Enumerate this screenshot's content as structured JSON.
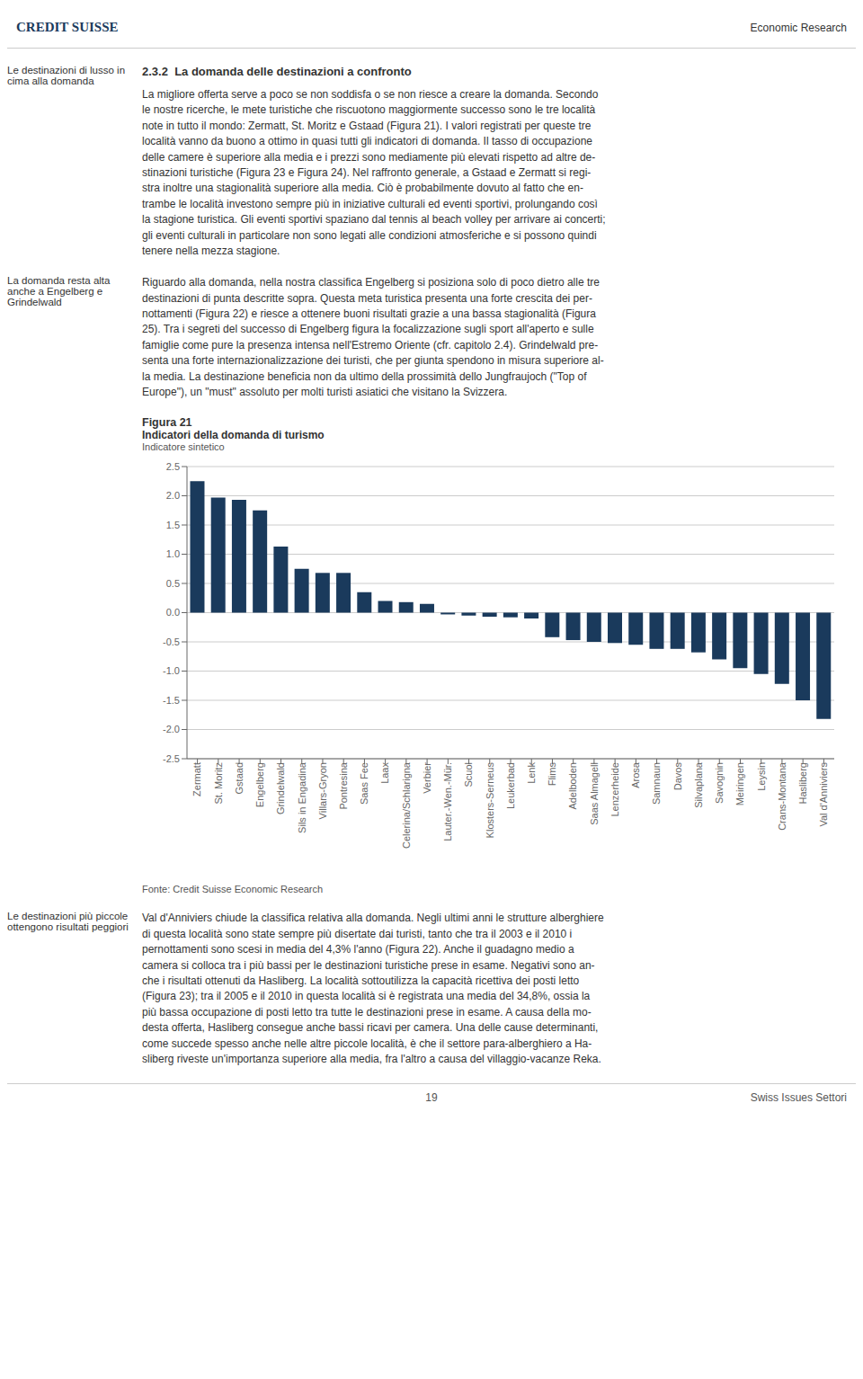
{
  "chart_data": {
    "type": "bar",
    "title": "Figura 21",
    "subtitle": "Indicatori della domanda di turismo",
    "ylabel": "Indicatore sintetico",
    "color": "#1a3a5c",
    "categories": [
      "Zermatt",
      "St. Moritz",
      "Gstaad",
      "Engelberg",
      "Grindelwald",
      "Sils in Engadina",
      "Villars-Gryon",
      "Pontresina",
      "Saas Fee",
      "Laax",
      "Celerina/Schlarigna",
      "Verbier",
      "Lauter.-Wen.-Mür.",
      "Scuol",
      "Klosters-Serneus",
      "Leukerbad",
      "Lenk",
      "Flims",
      "Adelboden",
      "Saas Almagell",
      "Lenzerheide",
      "Arosa",
      "Samnaun",
      "Davos",
      "Silvaplana",
      "Savognin",
      "Meiringen",
      "Leysin",
      "Crans-Montana",
      "Hasliberg",
      "Val d'Anniviers"
    ],
    "values": [
      2.25,
      1.97,
      1.93,
      1.75,
      1.13,
      0.75,
      0.68,
      0.68,
      0.35,
      0.2,
      0.18,
      0.15,
      -0.03,
      -0.05,
      -0.07,
      -0.08,
      -0.1,
      -0.42,
      -0.47,
      -0.5,
      -0.52,
      -0.55,
      -0.62,
      -0.62,
      -0.68,
      -0.8,
      -0.95,
      -1.05,
      -1.22,
      -1.5,
      -1.82
    ],
    "ylim": [
      -2.5,
      2.5
    ],
    "yticks": [
      -2.5,
      {
        "value": -2.0,
        "label": "-2.0"
      },
      -1.5,
      {
        "value": -1.0,
        "label": "-1.0"
      },
      -0.5,
      {
        "value": 0.0,
        "label": "0.0"
      },
      0.5,
      {
        "value": 1.0,
        "label": "1.0"
      },
      1.5,
      {
        "value": 2.0,
        "label": "2.0"
      },
      2.5
    ],
    "grid": true,
    "annotations": [
      "CREDIT SUISSE",
      "Economic Research",
      "Le destinazioni di lusso in\ncima alla domanda",
      "La domanda resta alta\nanche a Engelberg e\nGrindelwald",
      "2.3.2  La domanda delle destinazioni a confronto",
      "La migliore offerta serve a poco se non soddisfa o se non riesce a creare la domanda. Secondo\nle nostre ricerche, le mete turistiche che riscuotono maggiormente successo sono le tre località\nnote in tutto il mondo: Zermatt, St. Moritz e Gstaad (Figura 21). I valori registrati per queste tre\nlocalità vanno da buono a ottimo in quasi tutti gli indicatori di domanda. Il tasso di occupazione\ndelle camere è superiore alla media e i prezzi sono mediamente più elevati rispetto ad altre de-\nstinazioni turistiche (Figura 23 e Figura 24). Nel raffronto generale, a Gstaad e Zermatt si regi-\nstra inoltre una stagionalità superiore alla media. Ciò è probabilmente dovuto al fatto che en-\ntrambe le località investono sempre più in iniziative culturali ed eventi sportivi, prolungando così\nla stagione turistica. Gli eventi sportivi spaziano dal tennis al beach volley per arrivare ai concerti;\ngli eventi culturali in particolare non sono legati alle condizioni atmosferiche e si possono quindi\ntenere nella mezza stagione.",
      "Riguardo alla domanda, nella nostra classifica Engelberg si posiziona solo di poco dietro alle tre\ndestinazioni di punta descritte sopra. Questa meta turistica presenta una forte crescita dei per-\nnottamenti (Figura 22) e riesce a ottenere buoni risultati grazie a una bassa stagionalità (Figura\n25). Tra i segreti del successo di Engelberg figura la focalizzazione sugli sport all'aperto e sulle\nfamiglie come pure la presenza intensa nell'Estremo Oriente (cfr. capitolo 2.4). Grindelwald pre-\nsenta una forte internazionalizzazione dei turisti, che per giunta spendono in misura superiore al-\nla media. La destinazione beneficia non da ultimo della prossimità dello Jungfraujoch (\"Top of\nEurope\"), un \"must\" assoluto per molti turisti asiatici che visitano la Svizzera.",
      "Fonte: Credit Suisse Economic Research",
      "Le destinazioni più piccole\nottengono risultati peggiori",
      "Val d'Anniviers chiude la classifica relativa alla domanda. Negli ultimi anni le strutture alberghiere\ndi questa località sono state sempre più disertate dai turisti, tanto che tra il 2003 e il 2010 i\npernottamenti sono scesi in media del 4,3% l'anno (Figura 22). Anche il guadagno medio a\ncamera si colloca tra i più bassi per le destinazioni turistiche prese in esame. Negativi sono an-\nche i risultati ottenuti da Hasliberg. La località sottoutilizza la capacità ricettiva dei posti letto\n(Figura 23); tra il 2005 e il 2010 in questa località si è registrata una media del 34,8%, ossia la\npiù bassa occupazione di posti letto tra tutte le destinazioni prese in esame. A causa della mo-\ndesta offerta, Hasliberg consegue anche bassi ricavi per camera. Una delle cause determinanti,\ncome succede spesso anche nelle altre piccole località, è che il settore para-alberghiero a Ha-\nsliberg riveste un'importanza superiore alla media, fra l'altro a causa del villaggio-vacanze Reka.",
      "19",
      "Swiss Issues Settori"
    ]
  }
}
